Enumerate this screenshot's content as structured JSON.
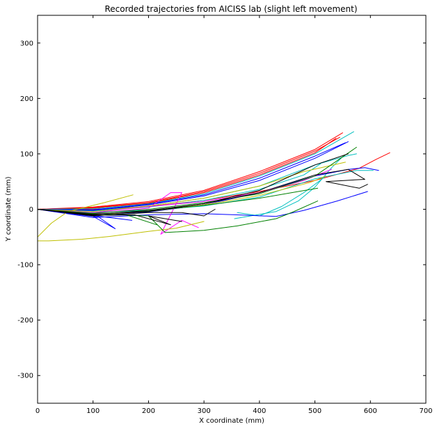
{
  "chart_data": {
    "type": "line",
    "title": "Recorded trajectories from AICISS lab (slight left movement)",
    "xlabel": "X coordinate (mm)",
    "ylabel": "Y coordinate (mm)",
    "xlim": [
      0,
      700
    ],
    "ylim": [
      -350,
      350
    ],
    "xticks": [
      0,
      100,
      200,
      300,
      400,
      500,
      600,
      700
    ],
    "yticks": [
      -300,
      -200,
      -100,
      0,
      100,
      200,
      300
    ],
    "grid": false,
    "legend": "none",
    "series": [
      {
        "color": "#ff0000",
        "points": [
          [
            0,
            0
          ],
          [
            100,
            3
          ],
          [
            200,
            12
          ],
          [
            300,
            32
          ],
          [
            400,
            65
          ],
          [
            500,
            105
          ],
          [
            545,
            130
          ]
        ]
      },
      {
        "color": "#ff0000",
        "points": [
          [
            0,
            0
          ],
          [
            100,
            2
          ],
          [
            200,
            11
          ],
          [
            300,
            30
          ],
          [
            400,
            62
          ],
          [
            500,
            102
          ],
          [
            538,
            128
          ]
        ]
      },
      {
        "color": "#ff0000",
        "points": [
          [
            0,
            0
          ],
          [
            100,
            4
          ],
          [
            200,
            14
          ],
          [
            300,
            34
          ],
          [
            400,
            68
          ],
          [
            500,
            108
          ],
          [
            550,
            138
          ]
        ]
      },
      {
        "color": "#ff0000",
        "points": [
          [
            0,
            0
          ],
          [
            100,
            0
          ],
          [
            200,
            5
          ],
          [
            300,
            16
          ],
          [
            400,
            32
          ],
          [
            500,
            52
          ],
          [
            580,
            74
          ],
          [
            610,
            90
          ],
          [
            635,
            102
          ]
        ]
      },
      {
        "color": "#00bfbf",
        "points": [
          [
            0,
            0
          ],
          [
            100,
            1
          ],
          [
            200,
            10
          ],
          [
            300,
            28
          ],
          [
            400,
            60
          ],
          [
            500,
            100
          ],
          [
            570,
            140
          ]
        ]
      },
      {
        "color": "#00bfbf",
        "points": [
          [
            0,
            0
          ],
          [
            100,
            -3
          ],
          [
            200,
            6
          ],
          [
            300,
            20
          ],
          [
            400,
            42
          ],
          [
            500,
            80
          ],
          [
            560,
            97
          ],
          [
            575,
            100
          ]
        ]
      },
      {
        "color": "#00bfbf",
        "points": [
          [
            0,
            0
          ],
          [
            100,
            -6
          ],
          [
            200,
            -2
          ],
          [
            300,
            6
          ],
          [
            400,
            22
          ],
          [
            500,
            55
          ],
          [
            575,
            70
          ],
          [
            605,
            70
          ]
        ]
      },
      {
        "color": "#00bfbf",
        "points": [
          [
            355,
            -17
          ],
          [
            430,
            -4
          ],
          [
            470,
            15
          ],
          [
            500,
            40
          ],
          [
            530,
            75
          ],
          [
            550,
            95
          ]
        ]
      },
      {
        "color": "#00bfbf",
        "points": [
          [
            360,
            -6
          ],
          [
            400,
            -12
          ],
          [
            440,
            5
          ],
          [
            480,
            30
          ],
          [
            520,
            60
          ]
        ]
      },
      {
        "color": "#00bfbf",
        "points": [
          [
            0,
            0
          ],
          [
            100,
            -4
          ],
          [
            200,
            4
          ],
          [
            300,
            16
          ],
          [
            400,
            36
          ],
          [
            480,
            62
          ],
          [
            510,
            82
          ]
        ]
      },
      {
        "color": "#0000ff",
        "points": [
          [
            0,
            0
          ],
          [
            100,
            -2
          ],
          [
            200,
            8
          ],
          [
            300,
            24
          ],
          [
            400,
            52
          ],
          [
            500,
            92
          ],
          [
            560,
            122
          ]
        ]
      },
      {
        "color": "#0000ff",
        "points": [
          [
            0,
            0
          ],
          [
            100,
            -1
          ],
          [
            200,
            9
          ],
          [
            300,
            26
          ],
          [
            400,
            56
          ],
          [
            500,
            96
          ],
          [
            555,
            120
          ]
        ]
      },
      {
        "color": "#0000ff",
        "points": [
          [
            0,
            0
          ],
          [
            60,
            -8
          ],
          [
            110,
            -14
          ],
          [
            140,
            -35
          ],
          [
            95,
            -10
          ]
        ]
      },
      {
        "color": "#0000ff",
        "points": [
          [
            0,
            0
          ],
          [
            80,
            -9
          ],
          [
            130,
            -15
          ],
          [
            170,
            -20
          ]
        ]
      },
      {
        "color": "#0000ff",
        "points": [
          [
            0,
            0
          ],
          [
            100,
            -15
          ],
          [
            200,
            -10
          ],
          [
            300,
            -8
          ],
          [
            360,
            -10
          ],
          [
            430,
            -13
          ],
          [
            480,
            -2
          ],
          [
            540,
            15
          ],
          [
            595,
            32
          ]
        ]
      },
      {
        "color": "#0000ff",
        "points": [
          [
            0,
            0
          ],
          [
            100,
            -12
          ],
          [
            200,
            -5
          ],
          [
            300,
            8
          ],
          [
            400,
            30
          ],
          [
            500,
            60
          ],
          [
            560,
            72
          ],
          [
            590,
            75
          ],
          [
            615,
            70
          ]
        ]
      },
      {
        "color": "#ff00ff",
        "points": [
          [
            0,
            0
          ],
          [
            100,
            -8
          ],
          [
            200,
            2
          ],
          [
            240,
            30
          ],
          [
            260,
            30
          ],
          [
            222,
            -45
          ],
          [
            260,
            -20
          ],
          [
            290,
            -33
          ]
        ]
      },
      {
        "color": "#ff00ff",
        "points": [
          [
            0,
            0
          ],
          [
            100,
            -6
          ],
          [
            200,
            5
          ],
          [
            300,
            14
          ],
          [
            400,
            30
          ],
          [
            480,
            52
          ],
          [
            530,
            72
          ]
        ]
      },
      {
        "color": "#bfbf00",
        "points": [
          [
            0,
            -57
          ],
          [
            20,
            -57
          ],
          [
            80,
            -54
          ],
          [
            130,
            -49
          ],
          [
            200,
            -40
          ],
          [
            250,
            -34
          ],
          [
            300,
            -22
          ]
        ]
      },
      {
        "color": "#bfbf00",
        "points": [
          [
            0,
            -50
          ],
          [
            25,
            -25
          ],
          [
            55,
            -4
          ],
          [
            120,
            12
          ],
          [
            172,
            26
          ]
        ]
      },
      {
        "color": "#bfbf00",
        "points": [
          [
            0,
            0
          ],
          [
            100,
            -4
          ],
          [
            200,
            6
          ],
          [
            300,
            20
          ],
          [
            400,
            42
          ],
          [
            480,
            68
          ],
          [
            555,
            85
          ]
        ]
      },
      {
        "color": "#bfbf00",
        "points": [
          [
            0,
            0
          ],
          [
            100,
            -10
          ],
          [
            200,
            -4
          ],
          [
            300,
            8
          ],
          [
            400,
            25
          ],
          [
            490,
            48
          ],
          [
            520,
            60
          ]
        ]
      },
      {
        "color": "#008000",
        "points": [
          [
            0,
            0
          ],
          [
            100,
            -8
          ],
          [
            200,
            -12
          ],
          [
            230,
            -42
          ],
          [
            300,
            -38
          ],
          [
            360,
            -30
          ],
          [
            430,
            -17
          ],
          [
            460,
            -5
          ],
          [
            505,
            15
          ]
        ]
      },
      {
        "color": "#008000",
        "points": [
          [
            0,
            0
          ],
          [
            100,
            -7
          ],
          [
            200,
            0
          ],
          [
            300,
            12
          ],
          [
            400,
            28
          ],
          [
            500,
            60
          ],
          [
            575,
            112
          ]
        ]
      },
      {
        "color": "#008000",
        "points": [
          [
            0,
            0
          ],
          [
            100,
            -9
          ],
          [
            200,
            -3
          ],
          [
            300,
            7
          ],
          [
            400,
            20
          ],
          [
            470,
            32
          ],
          [
            505,
            38
          ]
        ]
      },
      {
        "color": "#008000",
        "points": [
          [
            0,
            0
          ],
          [
            90,
            -8
          ],
          [
            160,
            -10
          ],
          [
            215,
            -28
          ]
        ]
      },
      {
        "color": "#000000",
        "points": [
          [
            0,
            0
          ],
          [
            100,
            -10
          ],
          [
            200,
            -2
          ],
          [
            300,
            10
          ],
          [
            400,
            30
          ],
          [
            500,
            62
          ],
          [
            560,
            72
          ],
          [
            590,
            54
          ],
          [
            520,
            50
          ],
          [
            580,
            38
          ],
          [
            595,
            45
          ]
        ]
      },
      {
        "color": "#000000",
        "points": [
          [
            0,
            0
          ],
          [
            100,
            -9
          ],
          [
            200,
            -4
          ],
          [
            300,
            10
          ],
          [
            400,
            34
          ],
          [
            500,
            80
          ],
          [
            560,
            100
          ]
        ]
      },
      {
        "color": "#000000",
        "points": [
          [
            0,
            0
          ],
          [
            100,
            -11
          ],
          [
            175,
            -10
          ],
          [
            240,
            -28
          ],
          [
            200,
            -12
          ],
          [
            260,
            -22
          ]
        ]
      },
      {
        "color": "#000000",
        "points": [
          [
            0,
            0
          ],
          [
            100,
            -12
          ],
          [
            200,
            -6
          ],
          [
            260,
            -6
          ],
          [
            300,
            -12
          ],
          [
            320,
            0
          ]
        ]
      }
    ]
  }
}
